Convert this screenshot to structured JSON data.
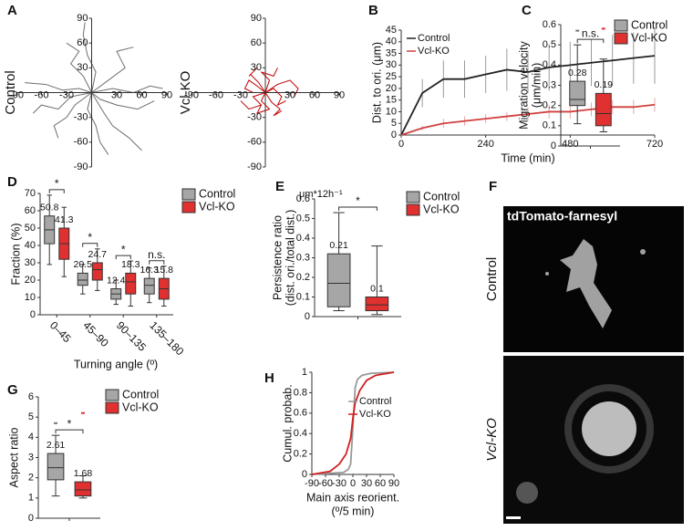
{
  "chart_data": [
    {
      "type": "trajectory",
      "panel": "A",
      "ylabel": "Control",
      "color": "#6e6e6e",
      "xlim": [
        -90,
        90
      ],
      "ylim": [
        -90,
        90
      ],
      "xticks": [
        -90,
        -60,
        -30,
        30,
        60,
        90
      ],
      "yticks": [
        -90,
        -60,
        -30,
        30,
        60,
        90
      ],
      "tracks": [
        {
          "x": [
            0,
            -15,
            -35,
            -55,
            -80
          ],
          "y": [
            0,
            5,
            3,
            10,
            12
          ]
        },
        {
          "x": [
            0,
            10,
            30,
            55,
            75
          ],
          "y": [
            0,
            -8,
            -15,
            -20,
            -10
          ]
        },
        {
          "x": [
            0,
            5,
            -5,
            -10,
            -8
          ],
          "y": [
            0,
            25,
            45,
            70,
            85
          ]
        },
        {
          "x": [
            0,
            -5,
            5,
            10,
            20
          ],
          "y": [
            0,
            -20,
            -40,
            -60,
            -75
          ]
        },
        {
          "x": [
            0,
            20,
            40,
            30,
            50
          ],
          "y": [
            0,
            15,
            30,
            50,
            55
          ]
        },
        {
          "x": [
            0,
            -20,
            -30,
            -45,
            -40
          ],
          "y": [
            0,
            -15,
            -30,
            -40,
            -55
          ]
        },
        {
          "x": [
            0,
            15,
            25,
            45,
            60
          ],
          "y": [
            0,
            -25,
            -40,
            -55,
            -70
          ]
        },
        {
          "x": [
            0,
            -10,
            -25,
            -15,
            -30
          ],
          "y": [
            0,
            20,
            35,
            50,
            60
          ]
        },
        {
          "x": [
            0,
            25,
            50,
            70,
            85
          ],
          "y": [
            0,
            5,
            0,
            8,
            5
          ]
        },
        {
          "x": [
            0,
            -25,
            -40,
            -60,
            -70
          ],
          "y": [
            0,
            -5,
            -20,
            -15,
            -25
          ]
        }
      ]
    },
    {
      "type": "trajectory",
      "ylabel": "Vcl-KO",
      "color": "#c00000",
      "unit_label": "μm*12h⁻¹",
      "xlim": [
        -90,
        90
      ],
      "ylim": [
        -90,
        90
      ],
      "xticks": [
        -90,
        -60,
        -30,
        30,
        60,
        90
      ],
      "yticks": [
        -90,
        -60,
        -30,
        30,
        60,
        90
      ],
      "tracks": [
        {
          "x": [
            0,
            10,
            20,
            15,
            25
          ],
          "y": [
            0,
            5,
            -5,
            -15,
            -10
          ]
        },
        {
          "x": [
            0,
            -10,
            -20,
            -25,
            -15
          ],
          "y": [
            0,
            8,
            15,
            5,
            0
          ]
        },
        {
          "x": [
            0,
            5,
            -5,
            10,
            15
          ],
          "y": [
            0,
            15,
            25,
            20,
            30
          ]
        },
        {
          "x": [
            0,
            -5,
            5,
            -10,
            -5
          ],
          "y": [
            0,
            -10,
            -20,
            -25,
            -15
          ]
        },
        {
          "x": [
            0,
            15,
            30,
            40,
            35
          ],
          "y": [
            0,
            10,
            15,
            5,
            -5
          ]
        },
        {
          "x": [
            0,
            -15,
            -5,
            -20,
            -30
          ],
          "y": [
            0,
            -5,
            -15,
            -20,
            -10
          ]
        },
        {
          "x": [
            0,
            8,
            18,
            10,
            20
          ],
          "y": [
            0,
            -12,
            -20,
            -28,
            -22
          ]
        },
        {
          "x": [
            0,
            -8,
            -18,
            -10,
            -20
          ],
          "y": [
            0,
            12,
            22,
            30,
            20
          ]
        }
      ]
    },
    {
      "type": "line",
      "panel": "B",
      "xlabel": "Time (min)",
      "ylabel": [
        "Dist. to ori. (μm)"
      ],
      "x": [
        0,
        60,
        120,
        180,
        240,
        300,
        360,
        420,
        480,
        540,
        600,
        660,
        720
      ],
      "xlim": [
        0,
        720
      ],
      "xticks": [
        0,
        240,
        480,
        720
      ],
      "ylim": [
        0,
        45
      ],
      "yticks": [
        0,
        5,
        10,
        15,
        20,
        25,
        30,
        35,
        40,
        45
      ],
      "series": [
        {
          "name": "Control",
          "color": "#222222",
          "values": [
            0,
            18,
            24,
            24,
            26,
            28,
            27,
            29,
            30,
            31,
            32,
            33,
            34
          ],
          "errors": [
            0,
            6,
            8,
            8,
            8,
            9,
            9,
            10,
            10,
            10,
            11,
            11,
            12
          ]
        },
        {
          "name": "Vcl-KO",
          "color": "#d04040",
          "values": [
            0,
            3,
            5,
            6,
            7,
            8,
            9,
            10,
            10,
            11,
            12,
            12,
            13
          ],
          "errors": [
            0,
            1,
            2,
            2,
            2,
            2,
            3,
            3,
            3,
            3,
            3,
            3,
            3
          ]
        }
      ]
    },
    {
      "type": "box",
      "panel": "C",
      "ylabel": [
        "Migration velocity",
        "(μm/min)"
      ],
      "ylim": [
        0,
        0.6
      ],
      "yticks": [
        0,
        0.1,
        0.2,
        0.3,
        0.4,
        0.5,
        0.6
      ],
      "significance": [
        "n.s."
      ],
      "series": [
        {
          "name": "Control",
          "color": "#a6a6a6",
          "boxes": [
            {
              "whislo": 0.11,
              "q1": 0.2,
              "median": 0.23,
              "q3": 0.32,
              "whishi": 0.5,
              "mean": 0.28,
              "fliers": [
                0.57
              ]
            }
          ]
        },
        {
          "name": "Vcl-KO",
          "color": "#e03030",
          "boxes": [
            {
              "whislo": 0.07,
              "q1": 0.1,
              "median": 0.16,
              "q3": 0.26,
              "whishi": 0.43,
              "mean": 0.19,
              "fliers": [
                0.58
              ]
            }
          ]
        }
      ]
    },
    {
      "type": "box",
      "panel": "D",
      "ylabel": [
        "Fraction (%)"
      ],
      "xlabel": "Turning angle (º)",
      "ylim": [
        0,
        70
      ],
      "yticks": [
        0,
        10,
        20,
        30,
        40,
        50,
        60,
        70
      ],
      "categories": [
        "0–45",
        "45–90",
        "90–135",
        "135–180"
      ],
      "significance": [
        "*",
        "*",
        "*",
        "n.s."
      ],
      "series": [
        {
          "name": "Control",
          "color": "#a6a6a6",
          "boxes": [
            {
              "whislo": 29,
              "q1": 41,
              "median": 49,
              "q3": 57,
              "whishi": 69,
              "mean": 50.8,
              "fliers": []
            },
            {
              "whislo": 12,
              "q1": 17,
              "median": 20,
              "q3": 24,
              "whishi": 29,
              "mean": 20.5,
              "fliers": []
            },
            {
              "whislo": 6,
              "q1": 9,
              "median": 12,
              "q3": 15,
              "whishi": 20,
              "mean": 12.4,
              "fliers": []
            },
            {
              "whislo": 7,
              "q1": 12,
              "median": 17,
              "q3": 21,
              "whishi": 27,
              "mean": 16.3,
              "fliers": []
            }
          ]
        },
        {
          "name": "Vcl-KO",
          "color": "#e03030",
          "boxes": [
            {
              "whislo": 22,
              "q1": 32,
              "median": 41,
              "q3": 50,
              "whishi": 62,
              "mean": 41.3,
              "fliers": []
            },
            {
              "whislo": 14,
              "q1": 20,
              "median": 26,
              "q3": 30,
              "whishi": 38,
              "mean": 24.7,
              "fliers": []
            },
            {
              "whislo": 5,
              "q1": 12,
              "median": 19,
              "q3": 24,
              "whishi": 31,
              "mean": 18.3,
              "fliers": []
            },
            {
              "whislo": 5,
              "q1": 9,
              "median": 15,
              "q3": 21,
              "whishi": 28,
              "mean": 15.8,
              "fliers": []
            }
          ]
        }
      ]
    },
    {
      "type": "box",
      "panel": "E",
      "ylabel": [
        "Persistence ratio",
        "(dist. ori./total dist.)"
      ],
      "ylim": [
        0,
        0.6
      ],
      "yticks": [
        0,
        0.1,
        0.2,
        0.3,
        0.4,
        0.5,
        0.6
      ],
      "significance": [
        "*"
      ],
      "series": [
        {
          "name": "Control",
          "color": "#a6a6a6",
          "boxes": [
            {
              "whislo": 0.03,
              "q1": 0.05,
              "median": 0.17,
              "q3": 0.32,
              "whishi": 0.53,
              "mean": 0.21,
              "fliers": []
            }
          ]
        },
        {
          "name": "Vcl-KO",
          "color": "#e03030",
          "boxes": [
            {
              "whislo": 0.01,
              "q1": 0.03,
              "median": 0.06,
              "q3": 0.1,
              "whishi": 0.36,
              "mean": 0.1,
              "fliers": []
            }
          ]
        }
      ]
    },
    {
      "type": "box",
      "panel": "G",
      "ylabel": [
        "Aspect ratio"
      ],
      "ylim": [
        0,
        6
      ],
      "yticks": [
        0,
        1,
        2,
        3,
        4,
        5,
        6
      ],
      "significance": [
        "*"
      ],
      "series": [
        {
          "name": "Control",
          "color": "#a6a6a6",
          "boxes": [
            {
              "whislo": 1.1,
              "q1": 1.9,
              "median": 2.5,
              "q3": 3.2,
              "whishi": 4.1,
              "mean": 2.61,
              "fliers": [
                4.7
              ]
            }
          ]
        },
        {
          "name": "Vcl-KO",
          "color": "#e03030",
          "boxes": [
            {
              "whislo": 1,
              "q1": 1.1,
              "median": 1.4,
              "q3": 1.8,
              "whishi": 2.1,
              "mean": 1.68,
              "fliers": [
                5.2
              ]
            }
          ]
        }
      ]
    },
    {
      "type": "line",
      "panel": "H",
      "xlabel": [
        "Main axis reorient.",
        "(º/5 min)"
      ],
      "ylabel": [
        "Cumul. probab."
      ],
      "xlim": [
        -90,
        90
      ],
      "xticks": [
        -90,
        -60,
        -30,
        0,
        30,
        60,
        90
      ],
      "ylim": [
        0,
        1
      ],
      "yticks": [
        0,
        0.2,
        0.4,
        0.6,
        0.8,
        1
      ],
      "series": [
        {
          "name": "Control",
          "color": "#999999",
          "x": [
            -90,
            -20,
            -10,
            -5,
            0,
            5,
            10,
            20,
            40,
            90
          ],
          "values": [
            0,
            0.02,
            0.05,
            0.1,
            0.45,
            0.85,
            0.93,
            0.97,
            0.99,
            1
          ]
        },
        {
          "name": "Vcl-KO",
          "color": "#d02020",
          "x": [
            -90,
            -50,
            -30,
            -15,
            -5,
            0,
            5,
            15,
            30,
            50,
            90
          ],
          "values": [
            0,
            0.03,
            0.1,
            0.2,
            0.35,
            0.55,
            0.7,
            0.82,
            0.92,
            0.97,
            1
          ]
        }
      ]
    }
  ],
  "image_panel": {
    "panel": "F",
    "label": "tdTomato-farnesyl",
    "rows": [
      "Control",
      "Vcl-KO"
    ]
  }
}
